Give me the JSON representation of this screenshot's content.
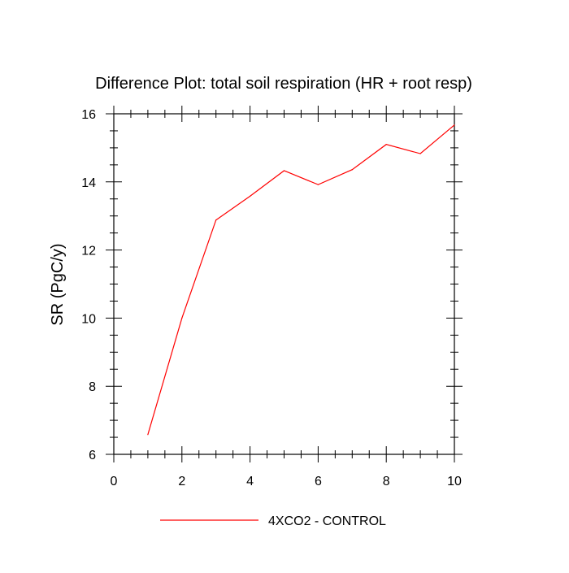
{
  "chart_data": {
    "type": "line",
    "title": "Difference Plot: total soil respiration (HR + root resp)",
    "xlabel": "",
    "ylabel": "SR  (PgC/y)",
    "xlim": [
      0,
      10
    ],
    "ylim": [
      6,
      16
    ],
    "x_ticks": [
      0,
      2,
      4,
      6,
      8,
      10
    ],
    "y_ticks": [
      6,
      8,
      10,
      12,
      14,
      16
    ],
    "x_minor_step": 0.5,
    "y_minor_step": 0.5,
    "grid": false,
    "legend_position": "bottom-center",
    "series": [
      {
        "name": "4XCO2 - CONTROL",
        "color": "#ff0000",
        "x": [
          1,
          2,
          3,
          4,
          5,
          6,
          7,
          8,
          9,
          10
        ],
        "y": [
          6.58,
          10.0,
          12.88,
          13.58,
          14.33,
          13.92,
          14.36,
          15.1,
          14.83,
          15.67
        ]
      }
    ]
  }
}
